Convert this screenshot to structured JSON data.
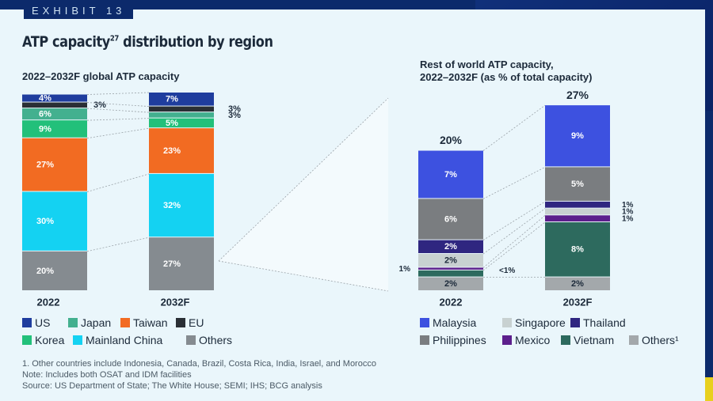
{
  "exhibit_label": "EXHIBIT 13",
  "title": "ATP capacity",
  "title_superscript": "27",
  "title_rest": " distribution by region",
  "left_subtitle": "2022–2032F global ATP capacity",
  "right_subtitle_line1": "Rest of world ATP capacity,",
  "right_subtitle_line2": "2022–2032F (as % of total capacity)",
  "colors": {
    "US": "#1f3d9e",
    "Japan": "#43b08f",
    "Taiwan": "#f26b22",
    "EU": "#2a2f35",
    "Korea": "#22c07a",
    "Mainland China": "#14d2f2",
    "Others": "#858b90",
    "Malaysia": "#3d51e0",
    "Singapore": "#c8d1d1",
    "Thailand": "#2f2680",
    "Philippines": "#7a7d80",
    "Mexico": "#5c1f8c",
    "Vietnam": "#2d6a5e",
    "Others1": "#a3a8ab"
  },
  "chart_data": [
    {
      "type": "bar",
      "stacked": true,
      "title": "2022–2032F global ATP capacity",
      "categories": [
        "2022",
        "2032F"
      ],
      "series": [
        {
          "name": "Others",
          "values": [
            20,
            27
          ],
          "labels": [
            "20%",
            "27%"
          ]
        },
        {
          "name": "Mainland China",
          "values": [
            30,
            32
          ],
          "labels": [
            "30%",
            "32%"
          ]
        },
        {
          "name": "Taiwan",
          "values": [
            27,
            23
          ],
          "labels": [
            "27%",
            "23%"
          ]
        },
        {
          "name": "Korea",
          "values": [
            9,
            5
          ],
          "labels": [
            "9%",
            "5%"
          ]
        },
        {
          "name": "Japan",
          "values": [
            6,
            3
          ],
          "labels": [
            "6%",
            "3%"
          ]
        },
        {
          "name": "EU",
          "values": [
            3,
            3
          ],
          "labels": [
            "3%",
            "3%"
          ]
        },
        {
          "name": "US",
          "values": [
            4,
            7
          ],
          "labels": [
            "4%",
            "7%"
          ]
        }
      ],
      "legend_rows": [
        [
          "US",
          "Japan",
          "Taiwan",
          "EU"
        ],
        [
          "Korea",
          "Mainland China",
          "Others"
        ]
      ]
    },
    {
      "type": "bar",
      "stacked": true,
      "title": "Rest of world ATP capacity, 2022–2032F (as % of total capacity)",
      "categories": [
        "2022",
        "2032F"
      ],
      "totals": [
        "20%",
        "27%"
      ],
      "series": [
        {
          "name": "Others¹",
          "key": "Others1",
          "values": [
            2,
            2
          ],
          "labels": [
            "2%",
            "2%"
          ]
        },
        {
          "name": "Vietnam",
          "values": [
            1,
            8
          ],
          "labels": [
            "1%",
            "8%"
          ]
        },
        {
          "name": "Mexico",
          "values": [
            0.4,
            1
          ],
          "labels": [
            "<1%",
            "1%"
          ]
        },
        {
          "name": "Singapore",
          "values": [
            2,
            1
          ],
          "labels": [
            "2%",
            "1%"
          ]
        },
        {
          "name": "Thailand",
          "values": [
            2,
            1
          ],
          "labels": [
            "2%",
            "1%"
          ]
        },
        {
          "name": "Philippines",
          "values": [
            6,
            5
          ],
          "labels": [
            "6%",
            "5%"
          ]
        },
        {
          "name": "Malaysia",
          "values": [
            7,
            9
          ],
          "labels": [
            "7%",
            "9%"
          ]
        }
      ],
      "legend_rows": [
        [
          "Malaysia",
          "Singapore",
          "Thailand"
        ],
        [
          "Philippines",
          "Mexico",
          "Vietnam",
          "Others¹"
        ]
      ]
    }
  ],
  "footnotes": [
    "1. Other countries include Indonesia, Canada, Brazil, Costa Rica, India, Israel, and Morocco",
    "Note: Includes both OSAT and IDM facilities",
    "Source: US Department of State; The White House; SEMI; IHS; BCG analysis"
  ]
}
